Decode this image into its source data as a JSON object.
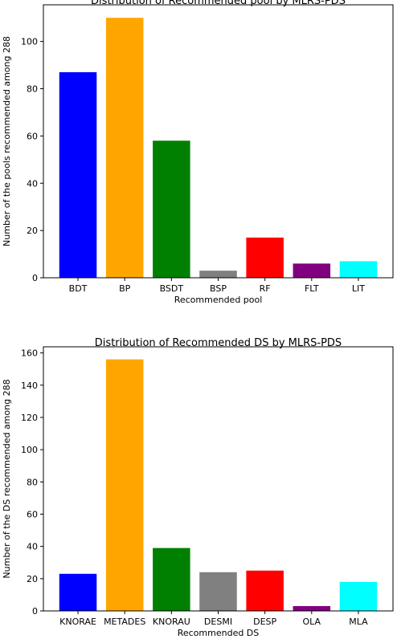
{
  "chart_data": [
    {
      "type": "bar",
      "title": "Distribution of Recommended pool by MLRS-PDS",
      "xlabel": "Recommended pool",
      "ylabel": "Number of the pools recommended among 288",
      "categories": [
        "BDT",
        "BP",
        "BSDT",
        "BSP",
        "RF",
        "FLT",
        "LIT"
      ],
      "values": [
        87,
        110,
        58,
        3,
        17,
        6,
        7
      ],
      "colors": [
        "#0000ff",
        "#ffa500",
        "#008000",
        "#808080",
        "#ff0000",
        "#800080",
        "#00ffff"
      ],
      "ylim": [
        0,
        115.5
      ],
      "yticks": [
        0,
        20,
        40,
        60,
        80,
        100
      ],
      "grid": false
    },
    {
      "type": "bar",
      "title": "Distribution of Recommended DS by MLRS-PDS",
      "xlabel": "Recommended DS",
      "ylabel": "Number of the DS recommended among 288",
      "categories": [
        "KNORAE",
        "METADES",
        "KNORAU",
        "DESMI",
        "DESP",
        "OLA",
        "MLA"
      ],
      "values": [
        23,
        156,
        39,
        24,
        25,
        3,
        18
      ],
      "colors": [
        "#0000ff",
        "#ffa500",
        "#008000",
        "#808080",
        "#ff0000",
        "#800080",
        "#00ffff"
      ],
      "ylim": [
        0,
        163.8
      ],
      "yticks": [
        0,
        20,
        40,
        60,
        80,
        100,
        120,
        140,
        160
      ],
      "grid": false
    }
  ]
}
